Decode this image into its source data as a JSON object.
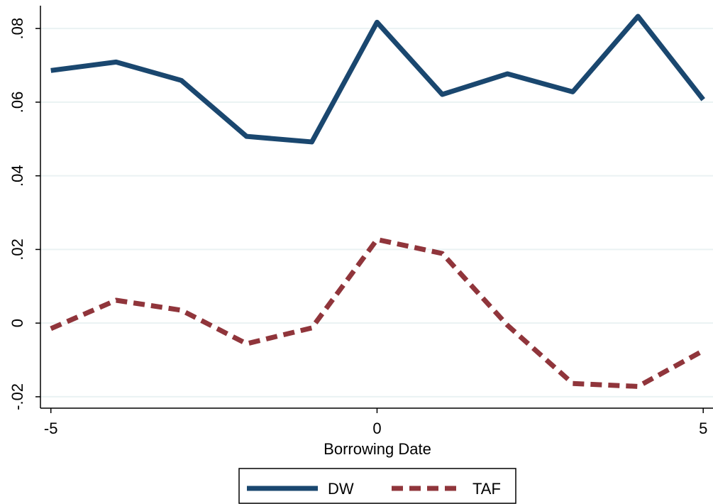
{
  "chart_data": {
    "type": "line",
    "xlabel": "Borrowing Date",
    "x": [
      -5,
      -4,
      -3,
      -2,
      -1,
      0,
      1,
      2,
      3,
      4,
      5
    ],
    "series": [
      {
        "name": "DW",
        "color": "#1a476f",
        "dash": "solid",
        "values": [
          0.0686,
          0.0709,
          0.0659,
          0.0507,
          0.0492,
          0.0817,
          0.0621,
          0.0677,
          0.0628,
          0.0833,
          0.0607
        ]
      },
      {
        "name": "TAF",
        "color": "#90353b",
        "dash": "dashed",
        "values": [
          -0.0015,
          0.0062,
          0.0035,
          -0.0056,
          -0.0013,
          0.0227,
          0.0189,
          -0.0006,
          -0.0164,
          -0.0172,
          -0.0075
        ]
      }
    ],
    "xlim": [
      -5.16,
      5.15
    ],
    "xticks": [
      -5,
      0,
      5
    ],
    "ylim": [
      -0.0231,
      0.0862
    ],
    "yticks": [
      {
        "value": -0.02,
        "label": "-.02"
      },
      0,
      {
        "value": 0.02,
        "label": ".02"
      },
      {
        "value": 0.04,
        "label": ".04"
      },
      {
        "value": 0.06,
        "label": ".06"
      },
      {
        "value": 0.08,
        "label": ".08"
      }
    ],
    "grid": true,
    "legend": "bottom"
  }
}
